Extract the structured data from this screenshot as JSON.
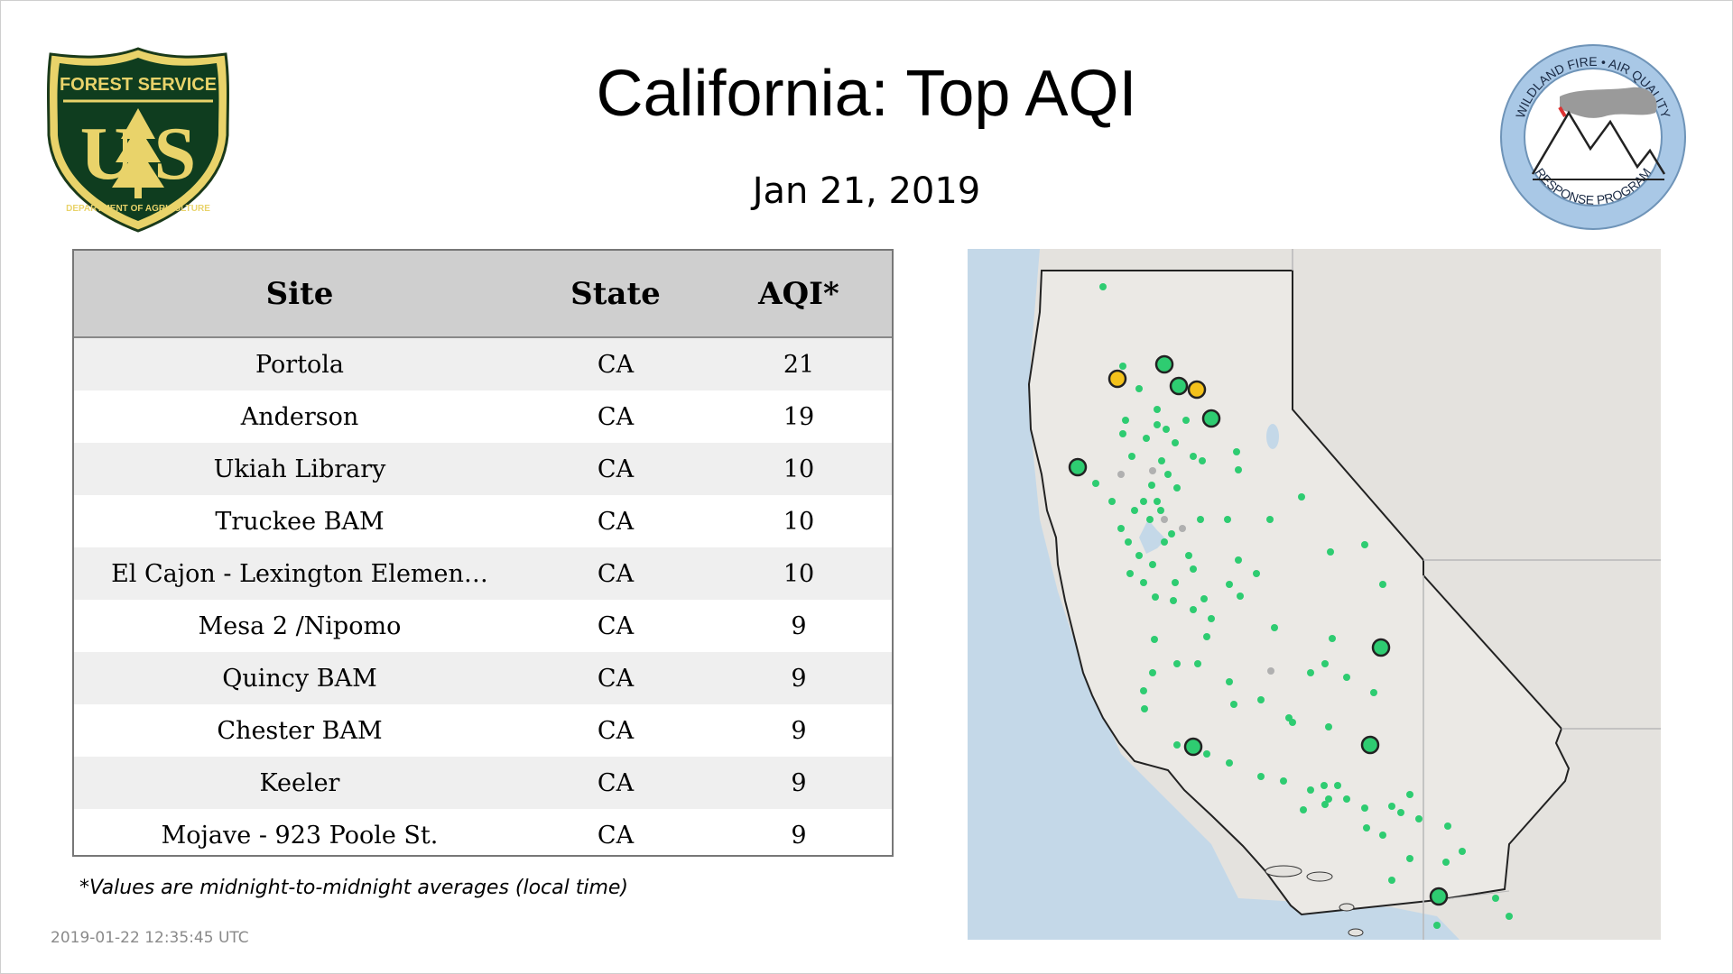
{
  "header": {
    "title": "California: Top AQI",
    "date": "Jan 21, 2019"
  },
  "logos": {
    "forest_service": {
      "top_text": "FOREST SERVICE",
      "letters": "U  S",
      "bottom_text": "DEPARTMENT OF AGRICULTURE"
    },
    "wildland_fire": {
      "top_text": "WILDLAND FIRE • AIR QUALITY",
      "bottom_text": "RESPONSE PROGRAM"
    }
  },
  "table": {
    "headers": [
      "Site",
      "State",
      "AQI*"
    ],
    "rows": [
      {
        "site": "Portola",
        "state": "CA",
        "aqi": "21"
      },
      {
        "site": "Anderson",
        "state": "CA",
        "aqi": "19"
      },
      {
        "site": "Ukiah Library",
        "state": "CA",
        "aqi": "10"
      },
      {
        "site": "Truckee BAM",
        "state": "CA",
        "aqi": "10"
      },
      {
        "site": "El Cajon - Lexington Elemen…",
        "state": "CA",
        "aqi": "10"
      },
      {
        "site": "Mesa 2 /Nipomo",
        "state": "CA",
        "aqi": "9"
      },
      {
        "site": "Quincy BAM",
        "state": "CA",
        "aqi": "9"
      },
      {
        "site": "Chester BAM",
        "state": "CA",
        "aqi": "9"
      },
      {
        "site": "Keeler",
        "state": "CA",
        "aqi": "9"
      },
      {
        "site": "Mojave - 923 Poole St.",
        "state": "CA",
        "aqi": "9"
      }
    ]
  },
  "footnote": "*Values are midnight-to-midnight averages (local time)",
  "timestamp": "2019-01-22 12:35:45 UTC",
  "map": {
    "colors": {
      "ocean": "#c4d8e8",
      "land": "#e8e6e2",
      "border": "#222222",
      "good": "#2ecc71",
      "moderate": "#f4c21b",
      "unknown": "#b0b0b0"
    }
  }
}
